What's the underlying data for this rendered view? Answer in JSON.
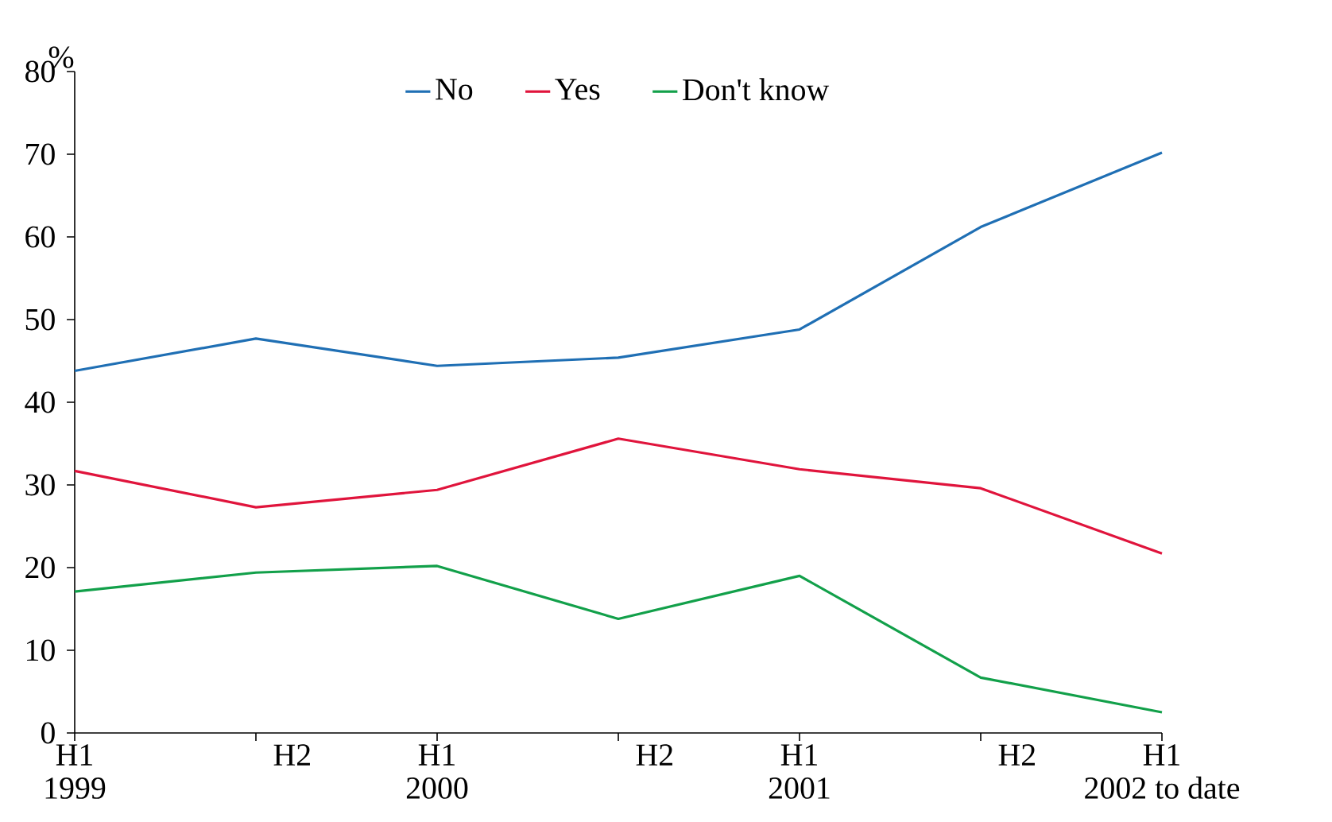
{
  "chart_data": {
    "type": "line",
    "ylabel": "%",
    "categories": [
      "H1 1999",
      "H2",
      "H1 2000",
      "H2",
      "H1 2001",
      "H2",
      "H1 2002 to date"
    ],
    "series": [
      {
        "name": "No",
        "color": "#1f6fb4",
        "values": [
          43.8,
          47.7,
          44.4,
          45.4,
          48.8,
          61.2,
          70.2
        ]
      },
      {
        "name": "Yes",
        "color": "#e0143c",
        "values": [
          31.7,
          27.3,
          29.4,
          35.6,
          31.9,
          29.6,
          21.7
        ]
      },
      {
        "name": "Don't know",
        "color": "#12a04a",
        "values": [
          17.1,
          19.4,
          20.2,
          13.8,
          19.0,
          6.7,
          2.5
        ]
      }
    ],
    "ylim": [
      0,
      80
    ],
    "yticks": [
      0,
      10,
      20,
      30,
      40,
      50,
      60,
      70,
      80
    ],
    "legend": "top",
    "grid": false
  }
}
